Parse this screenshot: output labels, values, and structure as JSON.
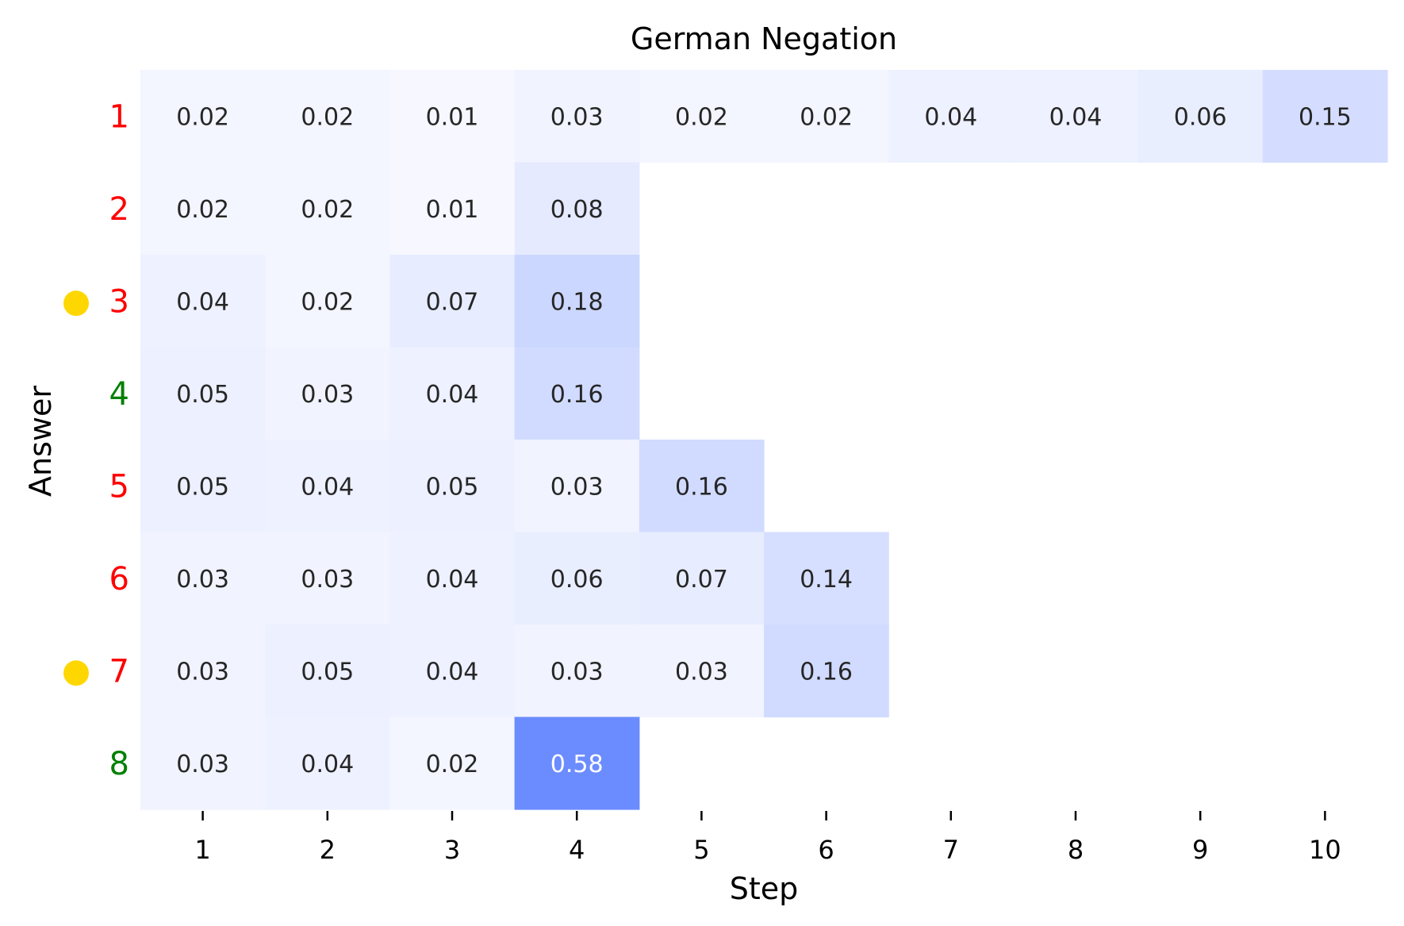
{
  "chart_data": {
    "type": "heatmap",
    "title": "German Negation",
    "xlabel": "Step",
    "ylabel": "Answer",
    "x_categories": [
      "1",
      "2",
      "3",
      "4",
      "5",
      "6",
      "7",
      "8",
      "9",
      "10"
    ],
    "y_categories": [
      "1",
      "2",
      "3",
      "4",
      "5",
      "6",
      "7",
      "8"
    ],
    "y_label_colors": [
      "#ff0000",
      "#ff0000",
      "#ff0000",
      "#008000",
      "#ff0000",
      "#ff0000",
      "#ff0000",
      "#008000"
    ],
    "y_markers": [
      false,
      false,
      true,
      false,
      false,
      false,
      true,
      false
    ],
    "marker_color": "#ffd700",
    "values": [
      [
        "0.02",
        "0.02",
        "0.01",
        "0.03",
        "0.02",
        "0.02",
        "0.04",
        "0.04",
        "0.06",
        "0.15"
      ],
      [
        "0.02",
        "0.02",
        "0.01",
        "0.08",
        null,
        null,
        null,
        null,
        null,
        null
      ],
      [
        "0.04",
        "0.02",
        "0.07",
        "0.18",
        null,
        null,
        null,
        null,
        null,
        null
      ],
      [
        "0.05",
        "0.03",
        "0.04",
        "0.16",
        null,
        null,
        null,
        null,
        null,
        null
      ],
      [
        "0.05",
        "0.04",
        "0.05",
        "0.03",
        "0.16",
        null,
        null,
        null,
        null,
        null
      ],
      [
        "0.03",
        "0.03",
        "0.04",
        "0.06",
        "0.07",
        "0.14",
        null,
        null,
        null,
        null
      ],
      [
        "0.03",
        "0.05",
        "0.04",
        "0.03",
        "0.03",
        "0.16",
        null,
        null,
        null,
        null
      ],
      [
        "0.03",
        "0.04",
        "0.02",
        "0.58",
        null,
        null,
        null,
        null,
        null,
        null
      ]
    ],
    "color_scale": {
      "min": 0,
      "max": 0.58,
      "low_color": "#f8f9ff",
      "high_color": "#6b8cff"
    },
    "grid": false,
    "legend": "none"
  }
}
